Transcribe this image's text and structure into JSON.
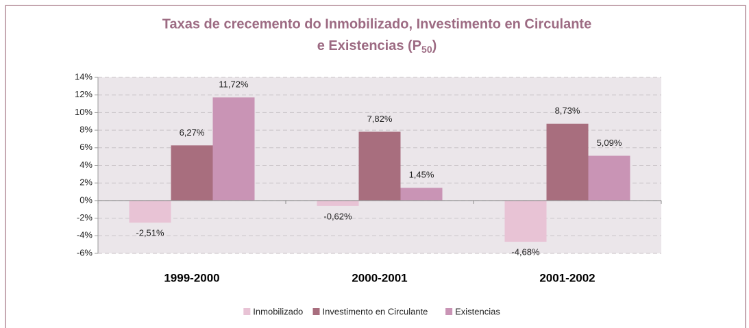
{
  "chart_data": {
    "type": "bar",
    "title": [
      "Taxas de crecemento do Inmobilizado, Investimento en Circulante",
      "e Existencias (P",
      "50",
      ")"
    ],
    "categories": [
      "1999-2000",
      "2000-2001",
      "2001-2002"
    ],
    "series": [
      {
        "name": "Inmobilizado",
        "color": "#e8c3d5",
        "values": [
          -2.51,
          -0.62,
          -4.68
        ],
        "value_labels": [
          "-2,51%",
          "-0,62%",
          "-4,68%"
        ]
      },
      {
        "name": "Investimento en Circulante",
        "color": "#a86e7e",
        "values": [
          6.27,
          7.82,
          8.73
        ],
        "value_labels": [
          "6,27%",
          "7,82%",
          "8,73%"
        ]
      },
      {
        "name": "Existencias",
        "color": "#c994b5",
        "values": [
          11.72,
          1.45,
          5.09
        ],
        "value_labels": [
          "11,72%",
          "1,45%",
          "5,09%"
        ]
      }
    ],
    "ylim": [
      -6,
      14
    ],
    "yticks": [
      {
        "value": -6,
        "label": "-6%"
      },
      {
        "value": -4,
        "label": "-4%"
      },
      {
        "value": -2,
        "label": "-2%"
      },
      {
        "value": 0,
        "label": "0%"
      },
      {
        "value": 2,
        "label": "2%"
      },
      {
        "value": 4,
        "label": "4%"
      },
      {
        "value": 6,
        "label": "6%"
      },
      {
        "value": 8,
        "label": "8%"
      },
      {
        "value": 10,
        "label": "10%"
      },
      {
        "value": 12,
        "label": "12%"
      },
      {
        "value": 14,
        "label": "14%"
      }
    ],
    "grid": true,
    "legend": "bottom"
  }
}
